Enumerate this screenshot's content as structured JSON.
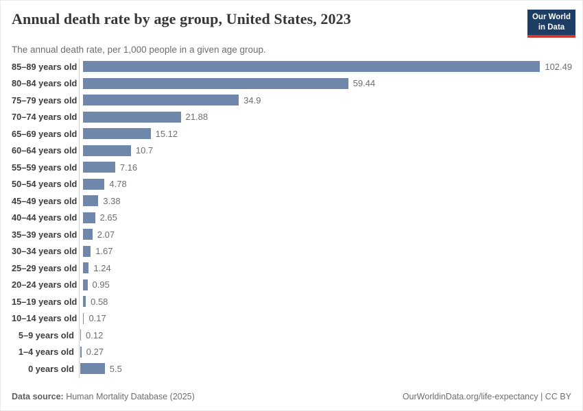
{
  "header": {
    "title": "Annual death rate by age group, United States, 2023",
    "subtitle": "The annual death rate, per 1,000 people in a given age group.",
    "logo": {
      "line1": "Our World",
      "line2": "in Data",
      "bg_color": "#1d3d63",
      "accent_color": "#d13832"
    }
  },
  "chart_data": {
    "type": "bar",
    "orientation": "horizontal",
    "title": "Annual death rate by age group, United States, 2023",
    "subtitle": "The annual death rate, per 1,000 people in a given age group.",
    "categories": [
      "85–89 years old",
      "80–84 years old",
      "75–79 years old",
      "70–74 years old",
      "65–69 years old",
      "60–64 years old",
      "55–59 years old",
      "50–54 years old",
      "45–49 years old",
      "40–44 years old",
      "35–39 years old",
      "30–34 years old",
      "25–29 years old",
      "20–24 years old",
      "15–19 years old",
      "10–14 years old",
      "5–9 years old",
      "1–4 years old",
      "0 years old"
    ],
    "values": [
      102.49,
      59.44,
      34.9,
      21.88,
      15.12,
      10.7,
      7.16,
      4.78,
      3.38,
      2.65,
      2.07,
      1.67,
      1.24,
      0.95,
      0.58,
      0.17,
      0.12,
      0.27,
      5.5
    ],
    "value_labels": [
      "102.49",
      "59.44",
      "34.9",
      "21.88",
      "15.12",
      "10.7",
      "7.16",
      "4.78",
      "3.38",
      "2.65",
      "2.07",
      "1.67",
      "1.24",
      "0.95",
      "0.58",
      "0.17",
      "0.12",
      "0.27",
      "5.5"
    ],
    "xlim": [
      0,
      102.49
    ],
    "bar_color": "#6e87ab",
    "axis_color": "#cfcfcf",
    "grid": false,
    "legend": "none",
    "value_labels_position": "end-of-bar"
  },
  "footer": {
    "datasource_label": "Data source:",
    "datasource_value": " Human Mortality Database (2025)",
    "link": "OurWorldinData.org/life-expectancy | CC BY"
  }
}
